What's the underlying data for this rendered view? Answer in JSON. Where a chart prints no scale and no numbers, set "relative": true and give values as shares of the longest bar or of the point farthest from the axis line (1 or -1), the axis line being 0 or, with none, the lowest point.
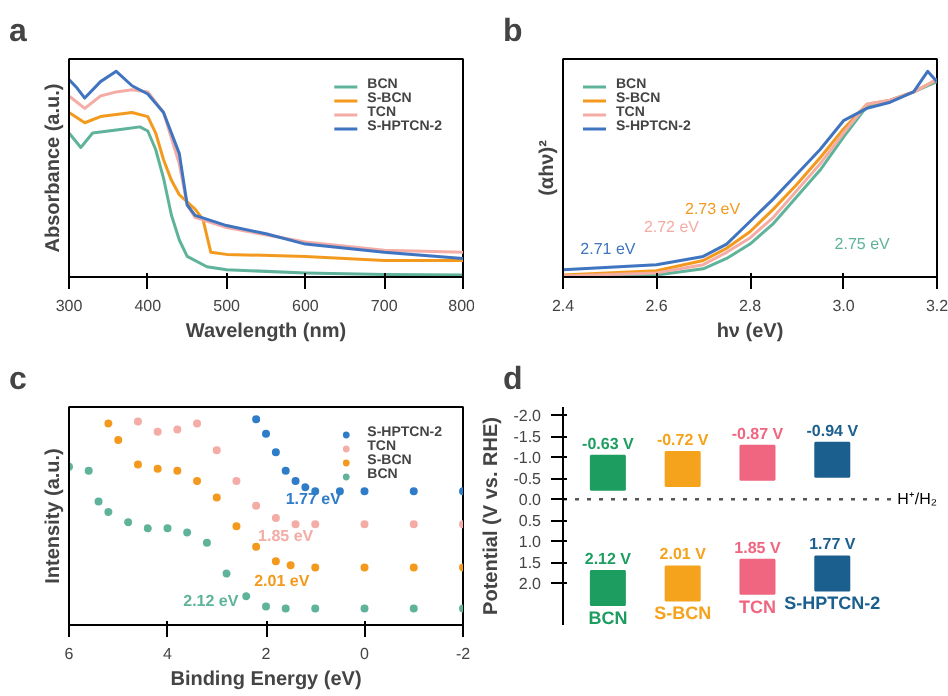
{
  "chart_data": [
    {
      "type": "line",
      "title": "a",
      "xlabel": "Wavelength (nm)",
      "ylabel": "Absorbance (a.u.)",
      "relative": true,
      "xlim": [
        300,
        800
      ],
      "xticks": [
        300,
        400,
        500,
        600,
        700,
        800
      ],
      "legend": "top right",
      "line_style": "solid",
      "series": [
        {
          "name": "BCN",
          "color": "#5fb39a",
          "x": [
            300,
            315,
            330,
            350,
            370,
            390,
            400,
            410,
            420,
            430,
            440,
            450,
            475,
            500,
            600,
            700,
            800
          ],
          "values": [
            0.7,
            0.63,
            0.7,
            0.71,
            0.72,
            0.73,
            0.71,
            0.62,
            0.48,
            0.3,
            0.18,
            0.1,
            0.05,
            0.035,
            0.02,
            0.012,
            0.01
          ]
        },
        {
          "name": "S-BCN",
          "color": "#f39a1e",
          "x": [
            300,
            320,
            340,
            360,
            380,
            400,
            410,
            420,
            430,
            440,
            460,
            470,
            480,
            500,
            600,
            700,
            800
          ],
          "values": [
            0.8,
            0.75,
            0.78,
            0.79,
            0.8,
            0.78,
            0.7,
            0.57,
            0.47,
            0.4,
            0.33,
            0.28,
            0.12,
            0.11,
            0.1,
            0.08,
            0.08
          ]
        },
        {
          "name": "TCN",
          "color": "#f4aca6",
          "x": [
            300,
            320,
            340,
            360,
            380,
            400,
            420,
            440,
            450,
            460,
            500,
            600,
            700,
            800
          ],
          "values": [
            0.88,
            0.82,
            0.88,
            0.9,
            0.91,
            0.9,
            0.8,
            0.55,
            0.35,
            0.29,
            0.24,
            0.17,
            0.13,
            0.12
          ]
        },
        {
          "name": "S-HPTCN-2",
          "color": "#3f74c0",
          "x": [
            300,
            310,
            320,
            340,
            360,
            380,
            400,
            420,
            440,
            450,
            460,
            500,
            550,
            600,
            700,
            800
          ],
          "values": [
            0.96,
            0.92,
            0.87,
            0.95,
            1.0,
            0.93,
            0.89,
            0.8,
            0.6,
            0.35,
            0.3,
            0.25,
            0.21,
            0.16,
            0.12,
            0.09
          ]
        }
      ]
    },
    {
      "type": "line",
      "title": "b",
      "xlabel": "hν (eV)",
      "ylabel": "(αhν)²",
      "relative": true,
      "xlim": [
        2.4,
        3.2
      ],
      "xticks": [
        {
          "value": 2.4,
          "label": "2.4"
        },
        {
          "value": 2.6,
          "label": "2.6"
        },
        {
          "value": 2.8,
          "label": "2.8"
        },
        {
          "value": 3.0,
          "label": "3.0"
        },
        {
          "value": 3.2,
          "label": "3.2"
        }
      ],
      "legend": "top left",
      "line_style": "solid",
      "series": [
        {
          "name": "BCN",
          "color": "#5fb39a",
          "x": [
            2.4,
            2.6,
            2.7,
            2.75,
            2.8,
            2.85,
            2.9,
            2.95,
            3.0,
            3.05,
            3.1,
            3.15,
            3.2
          ],
          "values": [
            0.0,
            0.01,
            0.04,
            0.09,
            0.16,
            0.26,
            0.39,
            0.52,
            0.68,
            0.83,
            0.86,
            0.9,
            0.95
          ]
        },
        {
          "name": "S-BCN",
          "color": "#f39a1e",
          "x": [
            2.4,
            2.6,
            2.7,
            2.75,
            2.8,
            2.85,
            2.9,
            2.95,
            3.0,
            3.05,
            3.1,
            3.15,
            3.2
          ],
          "values": [
            0.01,
            0.03,
            0.08,
            0.14,
            0.22,
            0.33,
            0.45,
            0.58,
            0.72,
            0.84,
            0.86,
            0.9,
            0.96
          ]
        },
        {
          "name": "TCN",
          "color": "#f4aca6",
          "x": [
            2.4,
            2.6,
            2.7,
            2.75,
            2.8,
            2.85,
            2.9,
            2.95,
            3.0,
            3.05,
            3.1,
            3.15,
            3.2
          ],
          "values": [
            0.005,
            0.02,
            0.06,
            0.12,
            0.19,
            0.29,
            0.42,
            0.55,
            0.7,
            0.84,
            0.86,
            0.9,
            0.96
          ]
        },
        {
          "name": "S-HPTCN-2",
          "color": "#3f74c0",
          "x": [
            2.4,
            2.6,
            2.7,
            2.75,
            2.8,
            2.85,
            2.9,
            2.95,
            3.0,
            3.05,
            3.1,
            3.15,
            3.18,
            3.2
          ],
          "values": [
            0.035,
            0.06,
            0.1,
            0.16,
            0.27,
            0.38,
            0.5,
            0.62,
            0.76,
            0.82,
            0.85,
            0.9,
            1.0,
            0.95
          ]
        }
      ],
      "annotations": [
        "2.75 eV",
        "2.73 eV",
        "2.72 eV",
        "2.71 eV"
      ]
    },
    {
      "type": "scatter",
      "title": "c",
      "xlabel": "Binding Energy (eV)",
      "ylabel": "Intensity (a.u.)",
      "relative": true,
      "xlim": [
        6,
        -2
      ],
      "xticks": [
        6,
        4,
        2,
        0,
        -2
      ],
      "legend": "top right",
      "marker": "circle",
      "series": [
        {
          "name": "S-HPTCN-2",
          "color": "#2f7cc8",
          "x": [
            2.2,
            2.0,
            1.8,
            1.6,
            1.4,
            1.2,
            1.0,
            0.5,
            0,
            -1,
            -2
          ],
          "values": [
            1.0,
            0.93,
            0.84,
            0.75,
            0.7,
            0.67,
            0.65,
            0.65,
            0.65,
            0.65,
            0.65
          ]
        },
        {
          "name": "TCN",
          "color": "#f4aca6",
          "x": [
            4.6,
            4.2,
            3.8,
            3.4,
            3.0,
            2.6,
            2.2,
            1.8,
            1.4,
            1.0,
            0,
            -1,
            -2
          ],
          "values": [
            0.99,
            0.94,
            0.95,
            0.98,
            0.85,
            0.7,
            0.58,
            0.52,
            0.49,
            0.49,
            0.49,
            0.49,
            0.49
          ]
        },
        {
          "name": "S-BCN",
          "color": "#f39a1e",
          "x": [
            5.2,
            5.0,
            4.6,
            4.2,
            3.8,
            3.4,
            3.0,
            2.6,
            2.2,
            1.8,
            1.5,
            1.0,
            0,
            -1,
            -2
          ],
          "values": [
            0.98,
            0.9,
            0.78,
            0.76,
            0.75,
            0.7,
            0.62,
            0.48,
            0.38,
            0.31,
            0.29,
            0.28,
            0.28,
            0.28,
            0.28
          ]
        },
        {
          "name": "BCN",
          "color": "#5fb39a",
          "x": [
            6,
            5.6,
            5.4,
            5.2,
            4.8,
            4.4,
            4.0,
            3.6,
            3.2,
            2.8,
            2.4,
            2.0,
            1.6,
            1.0,
            0,
            -1,
            -2
          ],
          "values": [
            0.77,
            0.75,
            0.6,
            0.55,
            0.5,
            0.47,
            0.47,
            0.45,
            0.4,
            0.25,
            0.14,
            0.09,
            0.08,
            0.08,
            0.08,
            0.08,
            0.08
          ]
        }
      ],
      "annotations": [
        "1.77 eV",
        "1.85 eV",
        "2.01 eV",
        "2.12 eV"
      ]
    },
    {
      "type": "scatter",
      "title": "d",
      "ylabel": "Potential (V vs. RHE)",
      "marker": "square",
      "categories": [
        "BCN",
        "S-BCN",
        "TCN",
        "S-HPTCN-2"
      ],
      "ylim": [
        3.0,
        -2.2
      ],
      "yticks": [
        {
          "value": -2.0,
          "label": "-2.0"
        },
        {
          "value": -1.5,
          "label": "-1.5"
        },
        {
          "value": -1.0,
          "label": "-1.0"
        },
        {
          "value": -0.5,
          "label": "-0.5"
        },
        {
          "value": 0.0,
          "label": "0.0"
        },
        {
          "value": 0.5,
          "label": "0.5"
        },
        {
          "value": 1.0,
          "label": "1.0"
        },
        {
          "value": 1.5,
          "label": "1.5"
        },
        {
          "value": 2.0,
          "label": "2.0"
        }
      ],
      "tick_labels": "y",
      "series": [
        {
          "colors": [
            "#1d9e60",
            "#f5a21c",
            "#f06680",
            "#1b5f8e"
          ],
          "values": [
            -0.63,
            -0.72,
            -0.87,
            -0.94
          ],
          "value_labels": [
            "-0.63 V",
            "-0.72 V",
            "-0.87 V",
            "-0.94 V"
          ]
        },
        {
          "colors": [
            "#1d9e60",
            "#f5a21c",
            "#f06680",
            "#1b5f8e"
          ],
          "values": [
            2.12,
            2.01,
            1.85,
            1.77
          ],
          "value_labels": [
            "2.12 V",
            "2.01 V",
            "1.85 V",
            "1.77 V"
          ]
        }
      ],
      "ref_lines": [
        {
          "axis": "y",
          "value": 0,
          "label": "H⁺/H₂",
          "line_style": "dotted",
          "color": "#555555"
        }
      ]
    }
  ]
}
